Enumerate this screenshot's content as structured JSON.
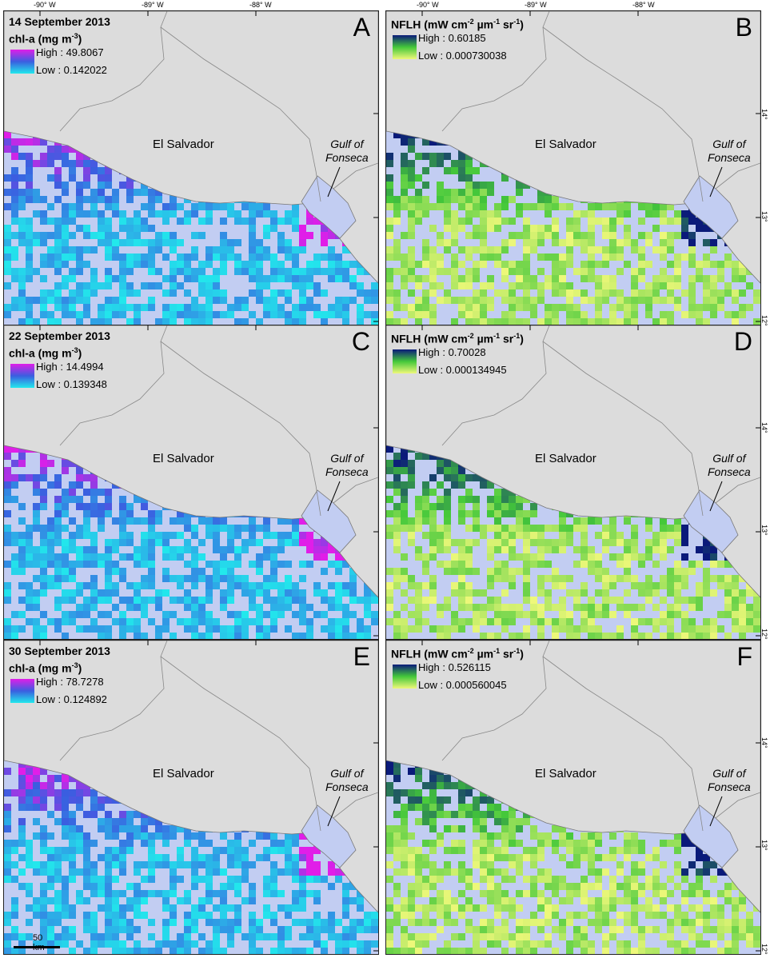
{
  "longitude_ticks": [
    "-90° W",
    "-89° W",
    "-88° W"
  ],
  "latitude_ticks": [
    "14° N",
    "13° N",
    "12° N"
  ],
  "country_label": "El Salvador",
  "gulf_label_line1": "Gulf of",
  "gulf_label_line2": "Fonseca",
  "scale_bar": "50 km",
  "panels": {
    "A": {
      "letter": "A",
      "date": "14 September 2013",
      "variable": "chl-a (mg m",
      "unit_sup": "-3",
      "unit_close": ")",
      "high": "High : 49.8067",
      "low": "Low : 0.142022",
      "product": "chl-a"
    },
    "B": {
      "letter": "B",
      "variable": "NFLH (mW cm",
      "unit_sup1": "-2",
      "unit_mid": " µm",
      "unit_sup2": "-1",
      "unit_sr": " sr",
      "unit_sup3": "-1",
      "unit_close": ")",
      "high": "High : 0.60185",
      "low": "Low : 0.000730038",
      "product": "NFLH"
    },
    "C": {
      "letter": "C",
      "date": "22 September 2013",
      "variable": "chl-a (mg m",
      "unit_sup": "-3",
      "unit_close": ")",
      "high": "High : 14.4994",
      "low": "Low : 0.139348",
      "product": "chl-a"
    },
    "D": {
      "letter": "D",
      "variable": "NFLH (mW cm",
      "unit_sup1": "-2",
      "unit_mid": " µm",
      "unit_sup2": "-1",
      "unit_sr": " sr",
      "unit_sup3": "-1",
      "unit_close": ")",
      "high": "High : 0.70028",
      "low": "Low : 0.000134945",
      "product": "NFLH"
    },
    "E": {
      "letter": "E",
      "date": "30 September 2013",
      "variable": "chl-a (mg m",
      "unit_sup": "-3",
      "unit_close": ")",
      "high": "High : 78.7278",
      "low": "Low : 0.124892",
      "product": "chl-a"
    },
    "F": {
      "letter": "F",
      "variable": "NFLH (mW cm",
      "unit_sup1": "-2",
      "unit_mid": " µm",
      "unit_sup2": "-1",
      "unit_sr": " sr",
      "unit_sup3": "-1",
      "unit_close": ")",
      "high": "High : 0.526115",
      "low": "Low : 0.000560045",
      "product": "NFLH"
    }
  },
  "colors": {
    "land": "#dcdcdc",
    "ocean": "#c2cdf2",
    "chl_low": "#22e8ec",
    "chl_mid": "#3a5ee0",
    "chl_high": "#e01ee8",
    "nflh_low": "#eef87a",
    "nflh_mid": "#44c83a",
    "nflh_high": "#0a1a7a"
  }
}
